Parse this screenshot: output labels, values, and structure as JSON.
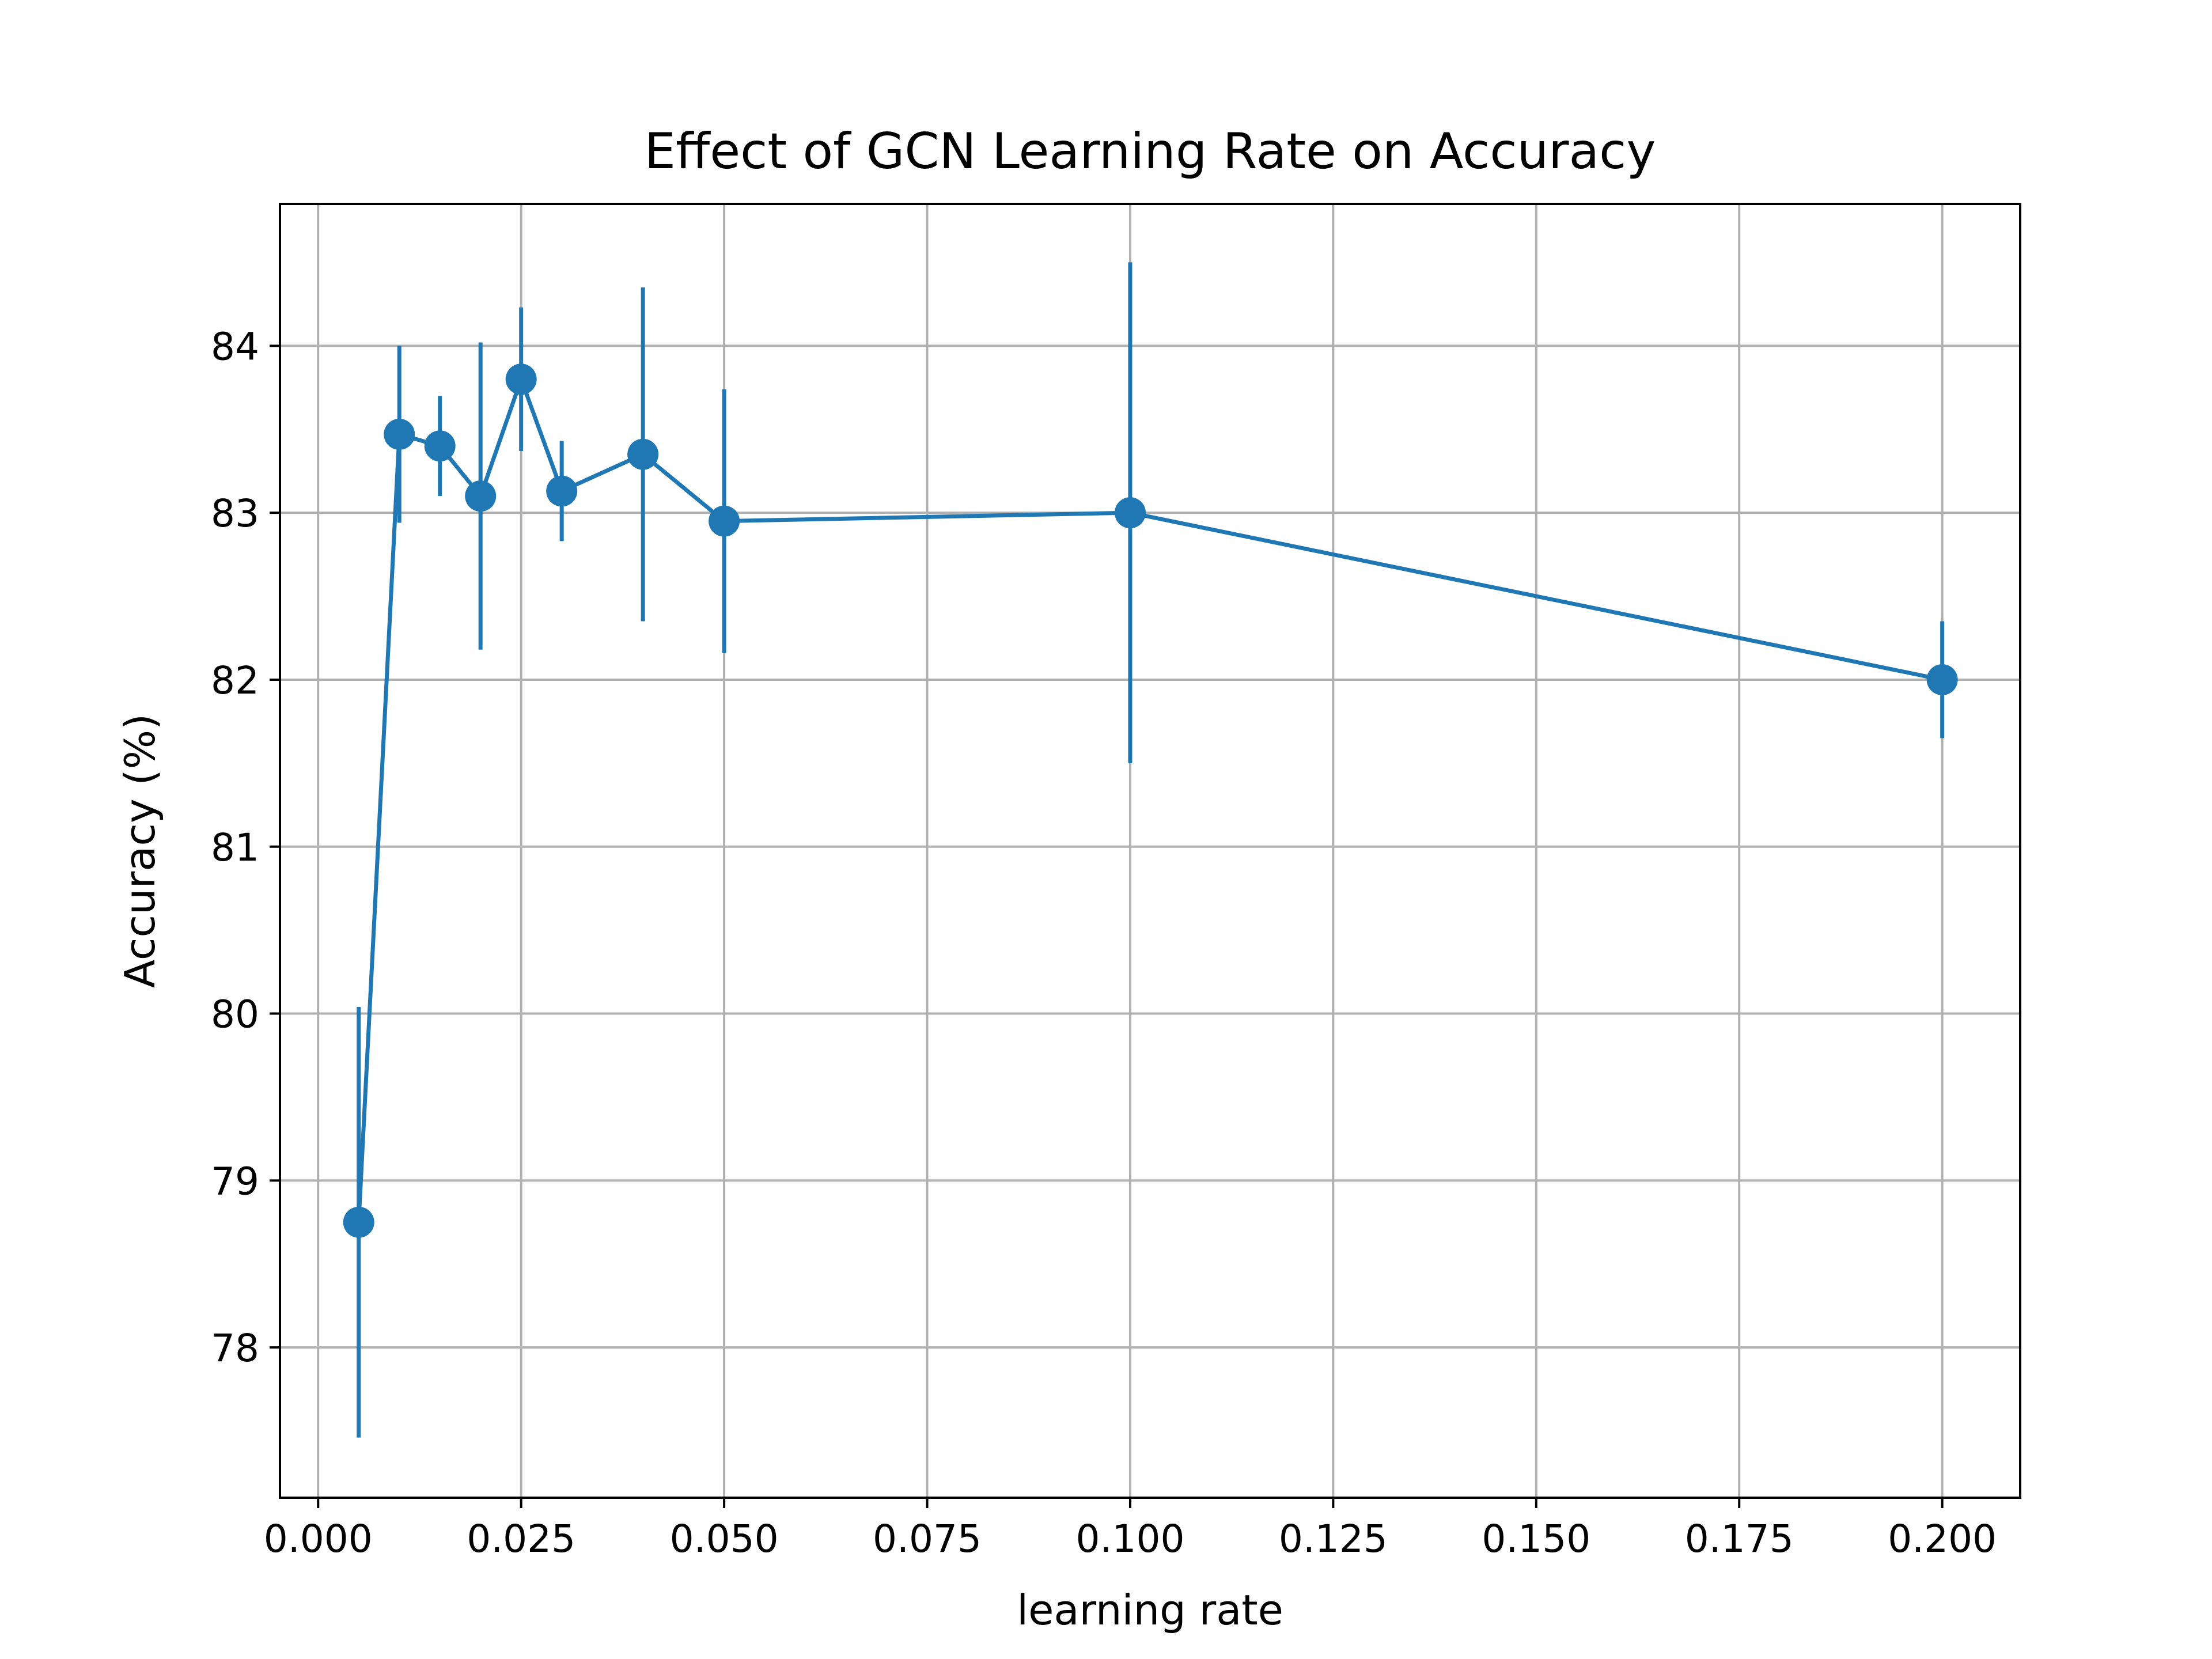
{
  "chart_data": {
    "type": "line",
    "title": "Effect of GCN Learning Rate on Accuracy",
    "xlabel": "learning rate",
    "ylabel": "Accuracy (%)",
    "xlim": [
      -0.0047,
      0.2096
    ],
    "ylim": [
      77.1,
      84.85
    ],
    "xticks": [
      0.0,
      0.025,
      0.05,
      0.075,
      0.1,
      0.125,
      0.15,
      0.175,
      0.2
    ],
    "xtick_labels": [
      "0.000",
      "0.025",
      "0.050",
      "0.075",
      "0.100",
      "0.125",
      "0.150",
      "0.175",
      "0.200"
    ],
    "yticks": [
      78,
      79,
      80,
      81,
      82,
      83,
      84
    ],
    "ytick_labels": [
      "78",
      "79",
      "80",
      "81",
      "82",
      "83",
      "84"
    ],
    "grid": true,
    "color": "#1f77b4",
    "series": [
      {
        "x": [
          0.005,
          0.01,
          0.015,
          0.02,
          0.025,
          0.03,
          0.04,
          0.05,
          0.1,
          0.2
        ],
        "y": [
          78.75,
          83.47,
          83.4,
          83.1,
          83.8,
          83.13,
          83.35,
          82.95,
          83.0,
          82.0
        ],
        "yerr": [
          1.29,
          0.53,
          0.3,
          0.92,
          0.43,
          0.3,
          1.0,
          0.79,
          1.5,
          0.35
        ]
      }
    ]
  }
}
